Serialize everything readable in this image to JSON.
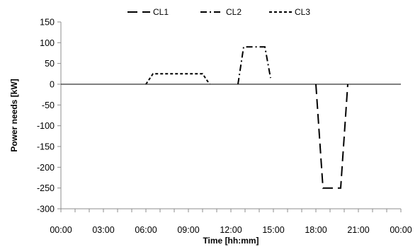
{
  "chart_data": {
    "type": "line",
    "xlabel": "Time [hh:mm]",
    "ylabel": "Power needs [kW]",
    "ylim": [
      -300,
      150
    ],
    "y_ticks": [
      -300,
      -250,
      -200,
      -150,
      -100,
      -50,
      0,
      50,
      100,
      150
    ],
    "x_tick_labels": [
      "00:00",
      "03:00",
      "06:00",
      "09:00",
      "12:00",
      "15:00",
      "18:00",
      "21:00",
      "00:00"
    ],
    "x_range_hours": [
      0,
      24
    ],
    "grid": false,
    "legend_position": "top",
    "series": [
      {
        "name": "CL1",
        "dash": "long-dash",
        "x_hours": [
          18.0,
          18.5,
          19.75,
          20.25
        ],
        "y": [
          0,
          -250,
          -250,
          0
        ]
      },
      {
        "name": "CL2",
        "dash": "dash-dot",
        "x_hours": [
          12.5,
          12.9,
          14.4,
          14.8
        ],
        "y": [
          0,
          90,
          90,
          15
        ]
      },
      {
        "name": "CL3",
        "dash": "short-dash",
        "x_hours": [
          6.0,
          6.5,
          10.0,
          10.5
        ],
        "y": [
          0,
          25,
          25,
          0
        ]
      }
    ],
    "baseline": 0
  }
}
